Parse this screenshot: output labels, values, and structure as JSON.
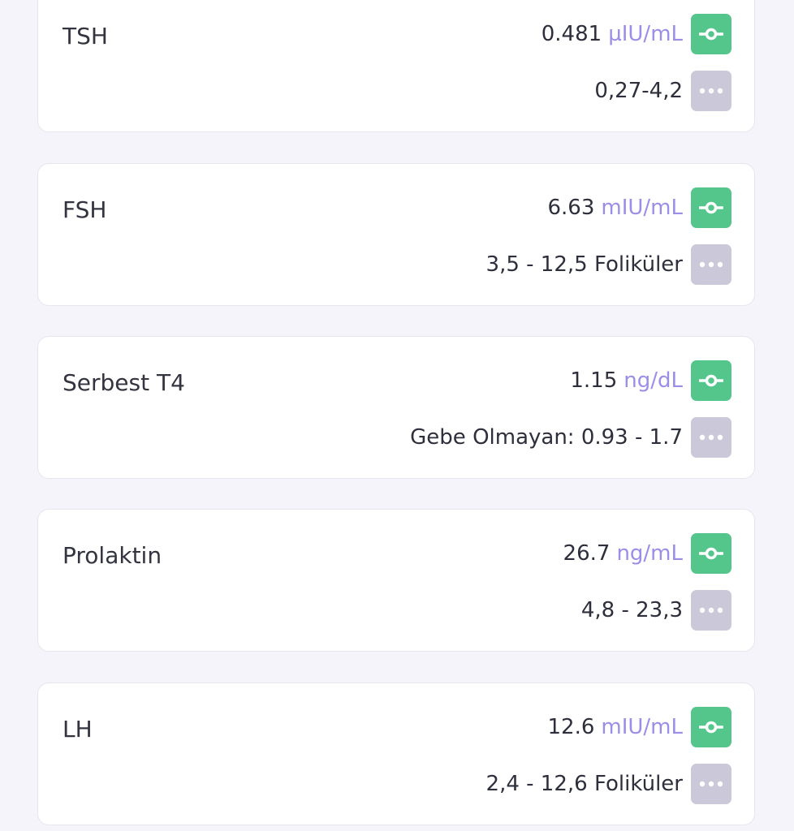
{
  "colors": {
    "status_button": "#55c68b",
    "more_button": "#cbc9d9",
    "unit_text": "#9a8ee8",
    "background": "#f4f4fa"
  },
  "icons": {
    "status": "commit-circle-icon",
    "more": "more-horizontal-icon"
  },
  "tests": [
    {
      "name": "TSH",
      "value": "0.481",
      "unit": "µIU/mL",
      "reference": "0,27-4,2"
    },
    {
      "name": "FSH",
      "value": "6.63",
      "unit": "mIU/mL",
      "reference": "3,5 - 12,5 Foliküler"
    },
    {
      "name": "Serbest T4",
      "value": "1.15",
      "unit": "ng/dL",
      "reference": "Gebe Olmayan: 0.93 - 1.7"
    },
    {
      "name": "Prolaktin",
      "value": "26.7",
      "unit": "ng/mL",
      "reference": "4,8 - 23,3"
    },
    {
      "name": "LH",
      "value": "12.6",
      "unit": "mIU/mL",
      "reference": "2,4 - 12,6 Foliküler"
    }
  ]
}
